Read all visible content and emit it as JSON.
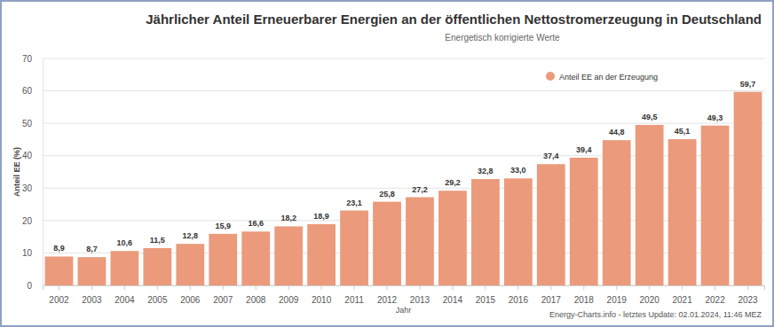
{
  "chart_data": {
    "type": "bar",
    "title": "Jährlicher Anteil Erneuerbarer Energien an der öffentlichen Nettostromerzeugung in Deutschland",
    "subtitle": "Energetisch korrigierte Werte",
    "x_label": "Jahr",
    "y_label": "Anteil EE (%)",
    "annotations": [
      "Energy-Charts.info - letztes Update: 02.01.2024, 11:46 MEZ"
    ],
    "categories": [
      "2002",
      "2003",
      "2004",
      "2005",
      "2006",
      "2007",
      "2008",
      "2009",
      "2010",
      "2011",
      "2012",
      "2013",
      "2014",
      "2015",
      "2016",
      "2017",
      "2018",
      "2019",
      "2020",
      "2021",
      "2022",
      "2023"
    ],
    "series": [
      {
        "name": "Anteil EE an der Erzeugung",
        "color": "#eb9a7c",
        "values": [
          8.9,
          8.7,
          10.6,
          11.5,
          12.8,
          15.9,
          16.6,
          18.2,
          18.9,
          23.1,
          25.8,
          27.2,
          29.2,
          32.8,
          33.0,
          37.4,
          39.4,
          44.8,
          49.5,
          45.1,
          49.3,
          59.7
        ],
        "value_labels": [
          "8,9",
          "8,7",
          "10,6",
          "11,5",
          "12,8",
          "15,9",
          "16,6",
          "18,2",
          "18,9",
          "23,1",
          "25,8",
          "27,2",
          "29,2",
          "32,8",
          "33,0",
          "37,4",
          "39,4",
          "44,8",
          "49,5",
          "45,1",
          "49,3",
          "59,7"
        ]
      }
    ],
    "ylim": [
      0,
      70
    ],
    "yticks": [
      0,
      10,
      20,
      30,
      40,
      50,
      60,
      70
    ],
    "grid": true,
    "legend": "top-right",
    "data_labels": true
  }
}
